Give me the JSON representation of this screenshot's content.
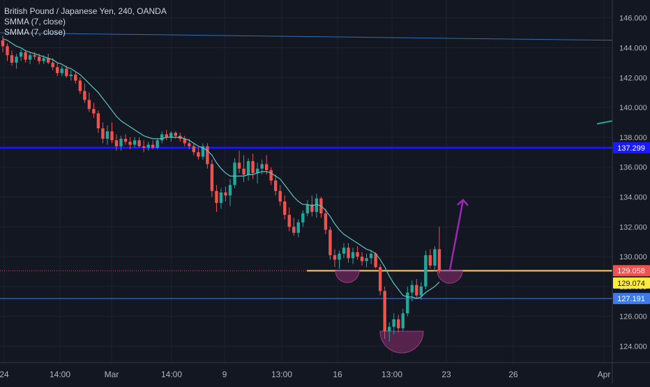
{
  "header": {
    "title": "British Pound / Japanese Yen, 240, OANDA",
    "indicators": [
      "SMMA (7, close)",
      "SMMA (7, close)"
    ]
  },
  "colors": {
    "background": "#131722",
    "grid": "#1e222d",
    "up": "#26a69a",
    "down": "#ef5350",
    "smma": "#5ec4c0",
    "support": "#1a1aff",
    "resistance_lower": "#3d7be8",
    "resistance_upper": "#2e6fb3",
    "neckline": "#f5a623",
    "cup": "#7b2a64",
    "arrow": "#9c27b0",
    "current_marker": "#ef5350",
    "price_marker_yellow": "#ffeb3b"
  },
  "chart_data": {
    "type": "candlestick",
    "symbol": "GBPJPY",
    "timeframe": "240",
    "ylim": [
      122.9,
      147.2
    ],
    "y_ticks": [
      "124.000",
      "126.000",
      "128.000",
      "130.000",
      "132.000",
      "134.000",
      "136.000",
      "138.000",
      "140.000",
      "142.000",
      "144.000",
      "146.000"
    ],
    "x_ticks": [
      "24",
      "14:00",
      "Mar",
      "14:00",
      "9",
      "13:00",
      "16",
      "13:00",
      "23",
      "26",
      "Apr"
    ],
    "price_labels": [
      {
        "text": "137.299",
        "value": 137.299,
        "kind": "support"
      },
      {
        "text": "129.058",
        "value": 129.058,
        "kind": "current"
      },
      {
        "text": "129.074",
        "value": 129.074,
        "kind": "yellow"
      },
      {
        "text": "127.191",
        "value": 127.191,
        "kind": "level"
      }
    ],
    "candles_ohlc": [
      [
        144.5,
        144.8,
        143.7,
        144.1
      ],
      [
        144.1,
        144.3,
        143.1,
        143.5
      ],
      [
        143.5,
        143.8,
        142.8,
        143.0
      ],
      [
        143.0,
        143.6,
        142.6,
        143.4
      ],
      [
        143.4,
        143.9,
        143.1,
        143.7
      ],
      [
        143.7,
        143.8,
        143.0,
        143.2
      ],
      [
        143.2,
        143.7,
        142.9,
        143.5
      ],
      [
        143.5,
        143.7,
        143.2,
        143.4
      ],
      [
        143.4,
        143.6,
        142.9,
        143.1
      ],
      [
        143.1,
        143.5,
        142.9,
        143.3
      ],
      [
        143.3,
        143.6,
        142.9,
        143.0
      ],
      [
        143.0,
        143.3,
        142.5,
        142.7
      ],
      [
        142.7,
        143.0,
        142.1,
        142.3
      ],
      [
        142.3,
        142.8,
        142.1,
        142.6
      ],
      [
        142.6,
        142.8,
        142.0,
        142.1
      ],
      [
        142.1,
        142.5,
        141.8,
        142.2
      ],
      [
        142.2,
        142.4,
        141.6,
        141.8
      ],
      [
        141.8,
        142.0,
        140.9,
        141.1
      ],
      [
        141.1,
        141.6,
        140.3,
        140.5
      ],
      [
        140.5,
        141.0,
        139.7,
        139.9
      ],
      [
        139.9,
        140.3,
        139.3,
        139.6
      ],
      [
        139.6,
        139.8,
        138.3,
        138.6
      ],
      [
        138.6,
        139.0,
        137.6,
        137.9
      ],
      [
        137.9,
        138.8,
        137.5,
        138.4
      ],
      [
        138.4,
        139.0,
        137.6,
        137.8
      ],
      [
        137.8,
        138.2,
        137.1,
        137.4
      ],
      [
        137.4,
        138.1,
        137.1,
        137.9
      ],
      [
        137.9,
        138.2,
        137.5,
        137.7
      ],
      [
        137.7,
        138.0,
        137.2,
        137.5
      ],
      [
        137.5,
        138.0,
        137.3,
        137.8
      ],
      [
        137.8,
        138.0,
        137.3,
        137.4
      ],
      [
        137.4,
        137.8,
        137.0,
        137.3
      ],
      [
        137.3,
        137.7,
        137.1,
        137.5
      ],
      [
        137.5,
        137.8,
        137.2,
        137.3
      ],
      [
        137.3,
        137.9,
        137.2,
        137.8
      ],
      [
        137.8,
        138.4,
        137.6,
        138.2
      ],
      [
        138.2,
        138.5,
        137.8,
        138.0
      ],
      [
        138.0,
        138.4,
        137.7,
        138.3
      ],
      [
        138.3,
        138.4,
        137.9,
        138.1
      ],
      [
        138.1,
        138.3,
        137.7,
        137.9
      ],
      [
        137.9,
        138.1,
        137.4,
        137.6
      ],
      [
        137.6,
        137.9,
        137.2,
        137.4
      ],
      [
        137.4,
        137.6,
        136.8,
        137.0
      ],
      [
        137.0,
        137.3,
        136.5,
        136.7
      ],
      [
        136.7,
        137.6,
        136.5,
        137.4
      ],
      [
        137.4,
        137.6,
        135.9,
        136.2
      ],
      [
        136.2,
        136.5,
        134.0,
        134.4
      ],
      [
        134.4,
        134.8,
        133.0,
        133.6
      ],
      [
        133.6,
        134.6,
        133.2,
        134.3
      ],
      [
        134.3,
        134.7,
        133.7,
        134.1
      ],
      [
        134.1,
        135.2,
        133.4,
        134.8
      ],
      [
        134.8,
        136.6,
        134.6,
        136.3
      ],
      [
        136.3,
        137.1,
        135.6,
        135.9
      ],
      [
        135.9,
        136.8,
        135.0,
        135.5
      ],
      [
        135.5,
        136.6,
        135.1,
        136.4
      ],
      [
        136.4,
        136.9,
        135.2,
        135.6
      ],
      [
        135.6,
        136.3,
        134.9,
        135.9
      ],
      [
        135.9,
        136.5,
        135.5,
        136.2
      ],
      [
        136.2,
        136.8,
        135.5,
        135.8
      ],
      [
        135.8,
        136.0,
        134.8,
        135.1
      ],
      [
        135.1,
        135.5,
        134.1,
        134.4
      ],
      [
        134.4,
        134.8,
        133.4,
        133.7
      ],
      [
        133.7,
        134.1,
        132.5,
        132.8
      ],
      [
        132.8,
        133.3,
        131.7,
        132.0
      ],
      [
        132.0,
        132.6,
        131.4,
        131.6
      ],
      [
        131.6,
        132.5,
        131.3,
        132.3
      ],
      [
        132.3,
        133.1,
        132.0,
        132.9
      ],
      [
        132.9,
        133.8,
        132.7,
        133.5
      ],
      [
        133.5,
        134.1,
        132.7,
        133.0
      ],
      [
        133.0,
        134.2,
        132.6,
        133.9
      ],
      [
        133.9,
        134.0,
        132.6,
        132.9
      ],
      [
        132.9,
        133.2,
        131.5,
        131.8
      ],
      [
        131.8,
        132.0,
        129.8,
        130.1
      ],
      [
        130.1,
        130.5,
        129.3,
        129.8
      ],
      [
        129.8,
        130.4,
        129.2,
        130.2
      ],
      [
        130.2,
        130.9,
        129.9,
        130.6
      ],
      [
        130.6,
        130.9,
        129.6,
        129.9
      ],
      [
        129.9,
        130.6,
        129.5,
        130.3
      ],
      [
        130.3,
        130.7,
        129.8,
        130.0
      ],
      [
        130.0,
        130.3,
        129.4,
        129.7
      ],
      [
        129.7,
        130.2,
        129.3,
        129.9
      ],
      [
        129.9,
        130.4,
        129.5,
        130.2
      ],
      [
        130.2,
        130.3,
        129.2,
        129.3
      ],
      [
        129.3,
        129.5,
        127.4,
        127.7
      ],
      [
        127.7,
        128.0,
        124.5,
        125.0
      ],
      [
        125.0,
        125.6,
        124.3,
        125.3
      ],
      [
        125.3,
        126.2,
        124.8,
        125.8
      ],
      [
        125.8,
        126.1,
        124.9,
        125.2
      ],
      [
        125.2,
        126.5,
        125.0,
        126.2
      ],
      [
        126.2,
        128.0,
        126.0,
        127.6
      ],
      [
        127.6,
        128.4,
        127.0,
        128.1
      ],
      [
        128.1,
        128.5,
        127.2,
        127.4
      ],
      [
        127.4,
        128.3,
        127.1,
        128.0
      ],
      [
        128.0,
        130.4,
        127.8,
        130.1
      ],
      [
        130.1,
        130.5,
        129.2,
        129.4
      ],
      [
        129.4,
        130.7,
        129.0,
        130.5
      ],
      [
        130.5,
        132.0,
        128.9,
        129.1
      ]
    ],
    "smma_values": [
      144.6,
      144.5,
      144.3,
      144.1,
      144.0,
      143.8,
      143.7,
      143.6,
      143.5,
      143.4,
      143.3,
      143.2,
      143.0,
      142.9,
      142.7,
      142.6,
      142.4,
      142.2,
      141.9,
      141.6,
      141.3,
      141.0,
      140.6,
      140.2,
      139.8,
      139.4,
      139.1,
      138.9,
      138.7,
      138.5,
      138.3,
      138.1,
      138.0,
      137.9,
      137.9,
      137.9,
      138.0,
      138.0,
      138.0,
      138.0,
      137.9,
      137.8,
      137.6,
      137.4,
      137.3,
      137.1,
      136.8,
      136.3,
      135.9,
      135.6,
      135.4,
      135.4,
      135.4,
      135.4,
      135.5,
      135.5,
      135.6,
      135.7,
      135.7,
      135.6,
      135.4,
      135.2,
      134.8,
      134.4,
      134.0,
      133.7,
      133.5,
      133.5,
      133.4,
      133.5,
      133.4,
      133.1,
      132.7,
      132.2,
      131.8,
      131.5,
      131.3,
      131.1,
      130.9,
      130.7,
      130.5,
      130.4,
      130.2,
      129.8,
      129.3,
      128.7,
      128.2,
      127.8,
      127.4,
      127.3,
      127.3,
      127.2,
      127.3,
      127.6,
      127.8,
      128.0,
      128.3
    ],
    "horizontal_levels": [
      {
        "name": "support",
        "value": 137.299
      },
      {
        "name": "lower",
        "value": 127.191
      },
      {
        "name": "neckline",
        "value": 129.058
      }
    ],
    "trendline": {
      "from": 145.0,
      "to": 144.5
    },
    "short_trend_segment": {
      "from": 138.9,
      "to": 139.1
    },
    "projection_arrow": {
      "from": 129.1,
      "to": 133.8
    },
    "annotations": [
      "left shoulder",
      "head",
      "right shoulder",
      "projection arrow"
    ]
  }
}
